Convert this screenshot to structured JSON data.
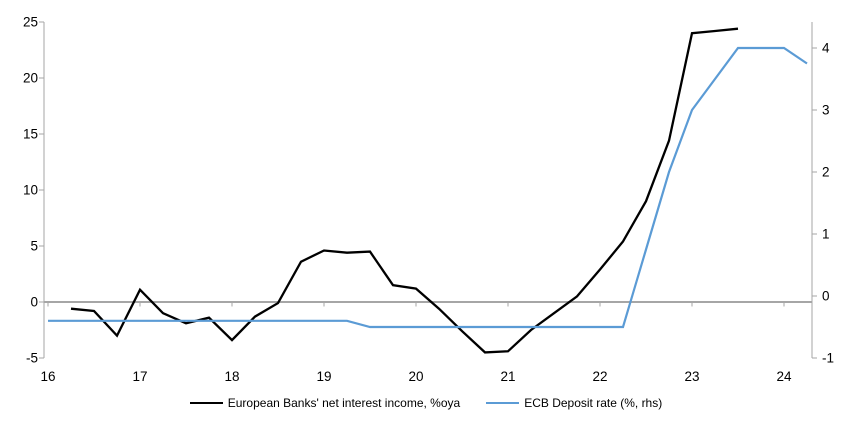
{
  "chart_data": {
    "type": "line",
    "title": "",
    "grid": "zero-line-only",
    "legend_position": "bottom-center",
    "background_color": "#ffffff",
    "axis_color": "#a6a6a6",
    "x_axis": {
      "min": 16,
      "max": 24.304,
      "ticks": [
        16,
        17,
        18,
        19,
        20,
        21,
        22,
        23,
        24
      ]
    },
    "left_axis": {
      "label": "",
      "min": -5,
      "max": 25,
      "ticks": [
        25,
        20,
        15,
        10,
        5,
        0,
        -5
      ]
    },
    "right_axis": {
      "label": "",
      "min": -1,
      "max": 4.42,
      "ticks": [
        4,
        3,
        2,
        1,
        0,
        -1
      ]
    },
    "series": [
      {
        "name": "European Banks' net interest income, %oya",
        "axis": "left",
        "color": "#000000",
        "width": 2.3,
        "points": [
          [
            16.25,
            -0.6
          ],
          [
            16.5,
            -0.8
          ],
          [
            16.75,
            -3.0
          ],
          [
            17.0,
            1.1
          ],
          [
            17.25,
            -1.0
          ],
          [
            17.5,
            -1.9
          ],
          [
            17.75,
            -1.4
          ],
          [
            18.0,
            -3.4
          ],
          [
            18.25,
            -1.3
          ],
          [
            18.5,
            -0.1
          ],
          [
            18.75,
            3.6
          ],
          [
            19.0,
            4.6
          ],
          [
            19.25,
            4.4
          ],
          [
            19.5,
            4.5
          ],
          [
            19.75,
            1.5
          ],
          [
            20.0,
            1.2
          ],
          [
            20.25,
            -0.6
          ],
          [
            20.5,
            -2.6
          ],
          [
            20.75,
            -4.5
          ],
          [
            21.0,
            -4.4
          ],
          [
            21.25,
            -2.5
          ],
          [
            21.5,
            -1.0
          ],
          [
            21.75,
            0.5
          ],
          [
            22.0,
            2.9
          ],
          [
            22.25,
            5.4
          ],
          [
            22.5,
            9.0
          ],
          [
            22.75,
            14.4
          ],
          [
            23.0,
            24.0
          ],
          [
            23.25,
            24.2
          ],
          [
            23.5,
            24.4
          ]
        ]
      },
      {
        "name": "ECB Deposit rate (%, rhs)",
        "axis": "right",
        "color": "#5b9bd5",
        "width": 2.2,
        "points": [
          [
            16.0,
            -0.4
          ],
          [
            19.25,
            -0.4
          ],
          [
            19.5,
            -0.5
          ],
          [
            22.25,
            -0.5
          ],
          [
            22.5,
            0.75
          ],
          [
            22.75,
            2.0
          ],
          [
            23.0,
            3.0
          ],
          [
            23.25,
            3.5
          ],
          [
            23.5,
            4.0
          ],
          [
            24.0,
            4.0
          ],
          [
            24.25,
            3.75
          ]
        ]
      }
    ]
  }
}
